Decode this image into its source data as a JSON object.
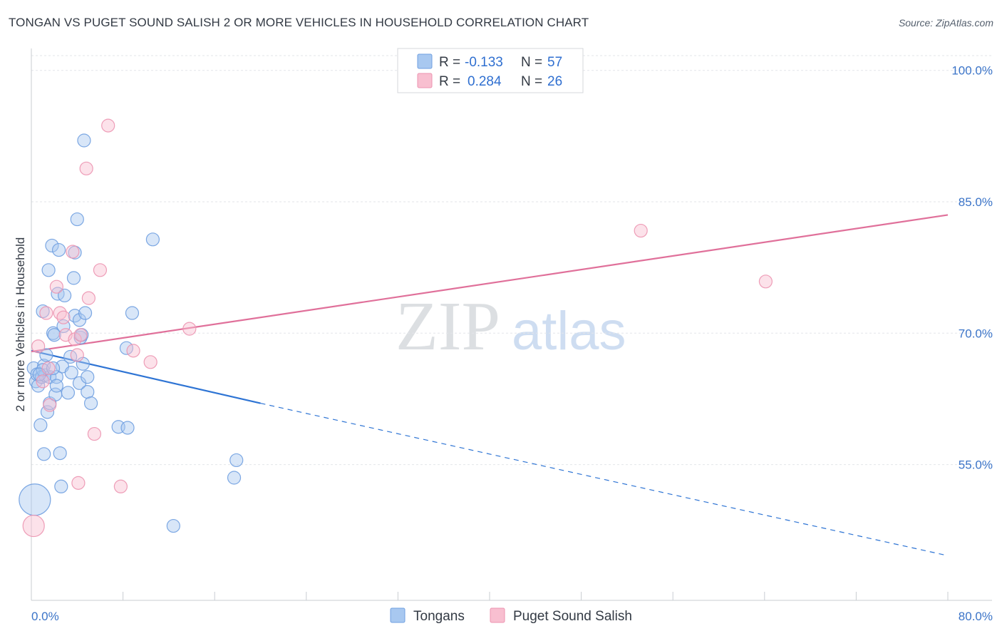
{
  "title": "TONGAN VS PUGET SOUND SALISH 2 OR MORE VEHICLES IN HOUSEHOLD CORRELATION CHART",
  "source": "Source: ZipAtlas.com",
  "watermark": {
    "zip": "ZIP",
    "atlas": "atlas"
  },
  "legend": {
    "rows": [
      {
        "r_label": "R =",
        "r_value": "-0.133",
        "n_label": "N =",
        "n_value": "57",
        "color": "#a8c8f0",
        "stroke": "#6f9fe0"
      },
      {
        "r_label": "R =",
        "r_value": "0.284",
        "n_label": "N =",
        "n_value": "26",
        "color": "#f8bfd0",
        "stroke": "#ec93b0"
      }
    ]
  },
  "bottom_legend": [
    "Tongans",
    "Puget Sound Salish"
  ],
  "chart_data": {
    "type": "scatter",
    "title": "TONGAN VS PUGET SOUND SALISH 2 OR MORE VEHICLES IN HOUSEHOLD CORRELATION CHART",
    "xlabel": "",
    "ylabel": "2 or more Vehicles in Household",
    "xlim": [
      0,
      80
    ],
    "ylim": [
      39.5,
      102.5
    ],
    "x_tick_labels": [
      {
        "value": 0,
        "label": "0.0%"
      },
      {
        "value": 80,
        "label": "80.0%"
      }
    ],
    "y_ticks": [
      {
        "value": 55,
        "label": "55.0%"
      },
      {
        "value": 70,
        "label": "70.0%"
      },
      {
        "value": 85,
        "label": "85.0%"
      },
      {
        "value": 100,
        "label": "100.0%"
      }
    ],
    "series": [
      {
        "name": "Tongans",
        "color": "#a8c8f0",
        "stroke": "#6f9fe0",
        "line_color": "#2e74d4",
        "trend": {
          "x0": 0,
          "y0": 68.0,
          "x1": 20,
          "y1": 62.0,
          "dash_to_x": 80,
          "dash_to_y": 44.6
        },
        "points": [
          [
            0.3,
            51.0,
            3
          ],
          [
            0.2,
            66.0,
            1
          ],
          [
            0.4,
            64.5,
            1
          ],
          [
            0.5,
            65.3,
            1
          ],
          [
            0.6,
            64.0,
            1
          ],
          [
            0.8,
            59.5,
            1
          ],
          [
            0.9,
            65.0,
            1
          ],
          [
            1.0,
            72.5,
            1
          ],
          [
            1.1,
            66.3,
            1
          ],
          [
            1.2,
            65.2,
            1
          ],
          [
            1.3,
            67.5,
            1
          ],
          [
            1.1,
            56.2,
            1
          ],
          [
            1.4,
            61.0,
            1
          ],
          [
            1.5,
            77.2,
            1
          ],
          [
            1.6,
            65.0,
            1
          ],
          [
            1.6,
            62.0,
            1
          ],
          [
            1.8,
            80.0,
            1
          ],
          [
            1.9,
            70.0,
            1
          ],
          [
            2.0,
            69.8,
            1
          ],
          [
            2.1,
            63.0,
            1
          ],
          [
            2.2,
            65.0,
            1
          ],
          [
            2.2,
            64.0,
            1
          ],
          [
            2.3,
            74.5,
            1
          ],
          [
            2.4,
            79.5,
            1
          ],
          [
            2.5,
            56.3,
            1
          ],
          [
            2.6,
            52.5,
            1
          ],
          [
            2.7,
            66.2,
            1
          ],
          [
            2.8,
            70.8,
            1
          ],
          [
            2.9,
            74.3,
            1
          ],
          [
            3.2,
            63.2,
            1
          ],
          [
            3.4,
            67.3,
            1
          ],
          [
            3.5,
            65.5,
            1
          ],
          [
            3.8,
            79.2,
            1
          ],
          [
            3.7,
            76.3,
            1
          ],
          [
            3.8,
            72.0,
            1
          ],
          [
            4.0,
            83.0,
            1
          ],
          [
            4.2,
            71.5,
            1
          ],
          [
            4.2,
            64.3,
            1
          ],
          [
            4.3,
            69.5,
            1
          ],
          [
            4.4,
            69.8,
            1
          ],
          [
            4.5,
            66.5,
            1
          ],
          [
            4.6,
            92.0,
            1
          ],
          [
            4.7,
            72.3,
            1
          ],
          [
            4.9,
            63.3,
            1
          ],
          [
            4.9,
            65.0,
            1
          ],
          [
            5.2,
            62.0,
            1
          ],
          [
            7.6,
            59.3,
            1
          ],
          [
            8.3,
            68.3,
            1
          ],
          [
            8.4,
            59.2,
            1
          ],
          [
            8.8,
            72.3,
            1
          ],
          [
            10.6,
            80.7,
            1
          ],
          [
            12.4,
            48.0,
            1
          ],
          [
            17.7,
            53.5,
            1
          ],
          [
            17.9,
            55.5,
            1
          ],
          [
            1.0,
            65.8,
            1
          ],
          [
            0.7,
            65.3,
            1
          ],
          [
            1.9,
            66.0,
            1
          ]
        ]
      },
      {
        "name": "Puget Sound Salish",
        "color": "#f8bfd0",
        "stroke": "#ec93b0",
        "line_color": "#e0709a",
        "trend": {
          "x0": 0,
          "y0": 67.9,
          "x1": 80,
          "y1": 83.5
        },
        "points": [
          [
            0.2,
            48.0,
            2
          ],
          [
            0.6,
            68.5,
            1
          ],
          [
            1.0,
            64.5,
            1
          ],
          [
            1.3,
            72.3,
            1
          ],
          [
            1.5,
            66.0,
            1
          ],
          [
            1.6,
            61.8,
            1
          ],
          [
            2.2,
            75.3,
            1
          ],
          [
            2.5,
            72.3,
            1
          ],
          [
            2.8,
            71.8,
            1
          ],
          [
            3.0,
            69.8,
            1
          ],
          [
            3.6,
            79.3,
            1
          ],
          [
            3.8,
            69.3,
            1
          ],
          [
            4.0,
            67.5,
            1
          ],
          [
            4.1,
            52.9,
            1
          ],
          [
            4.3,
            69.8,
            1
          ],
          [
            4.8,
            88.8,
            1
          ],
          [
            5.0,
            74.0,
            1
          ],
          [
            5.5,
            58.5,
            1
          ],
          [
            6.0,
            77.2,
            1
          ],
          [
            6.7,
            93.7,
            1
          ],
          [
            7.8,
            52.5,
            1
          ],
          [
            8.9,
            68.0,
            1
          ],
          [
            10.4,
            66.7,
            1
          ],
          [
            13.8,
            70.5,
            1
          ],
          [
            53.2,
            81.7,
            1
          ],
          [
            64.1,
            75.9,
            1
          ]
        ]
      }
    ]
  }
}
